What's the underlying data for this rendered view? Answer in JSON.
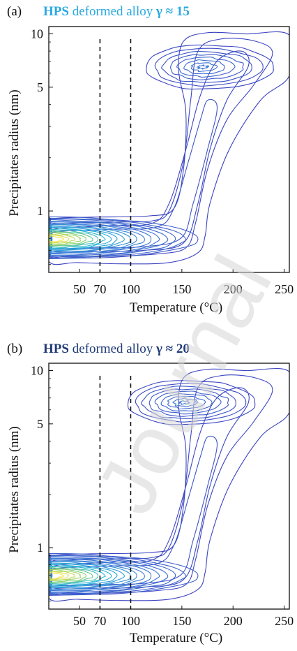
{
  "colors": {
    "title_a": "#29a8e0",
    "title_b": "#1f3a78",
    "axis": "#111111",
    "contour_outer": "#3b3fc0",
    "contour_mid": "#26b7d8",
    "contour_inner": "#f6e24a",
    "watermark": "#d6d6d6"
  },
  "watermark_text": "Journal",
  "chart_data": [
    {
      "type": "contour",
      "panel_label": "(a)",
      "title_parts": [
        "HPS",
        " deformed alloy ",
        "γ ≈ 15"
      ],
      "xlabel": "Temperature (°C)",
      "ylabel": "Precipitates radius (nm)",
      "xlim": [
        20,
        255
      ],
      "ylim": [
        0.45,
        11
      ],
      "yscale": "log",
      "xticks": [
        50,
        70,
        100,
        150,
        200,
        250
      ],
      "yticks": [
        1,
        5,
        10
      ],
      "dashed_lines_x": [
        70,
        100
      ],
      "hotspots": [
        {
          "x": 35,
          "y": 0.62,
          "note": "low-temperature peak near 0.6 nm"
        },
        {
          "x": 170,
          "y": 6.5,
          "note": "high-temperature peak near 6.5 nm"
        }
      ]
    },
    {
      "type": "contour",
      "panel_label": "(b)",
      "title_parts": [
        "HPS",
        " deformed alloy ",
        "γ ≈ 20"
      ],
      "xlabel": "Temperature (°C)",
      "ylabel": "Precipitates radius (nm)",
      "xlim": [
        20,
        255
      ],
      "ylim": [
        0.45,
        11
      ],
      "yscale": "log",
      "xticks": [
        50,
        70,
        100,
        150,
        200,
        250
      ],
      "yticks": [
        1,
        5,
        10
      ],
      "dashed_lines_x": [
        70,
        100
      ],
      "hotspots": [
        {
          "x": 35,
          "y": 0.62,
          "note": "low-temperature peak near 0.6 nm"
        },
        {
          "x": 152,
          "y": 6.6,
          "note": "high-temperature peak near 6.6 nm"
        }
      ]
    }
  ]
}
